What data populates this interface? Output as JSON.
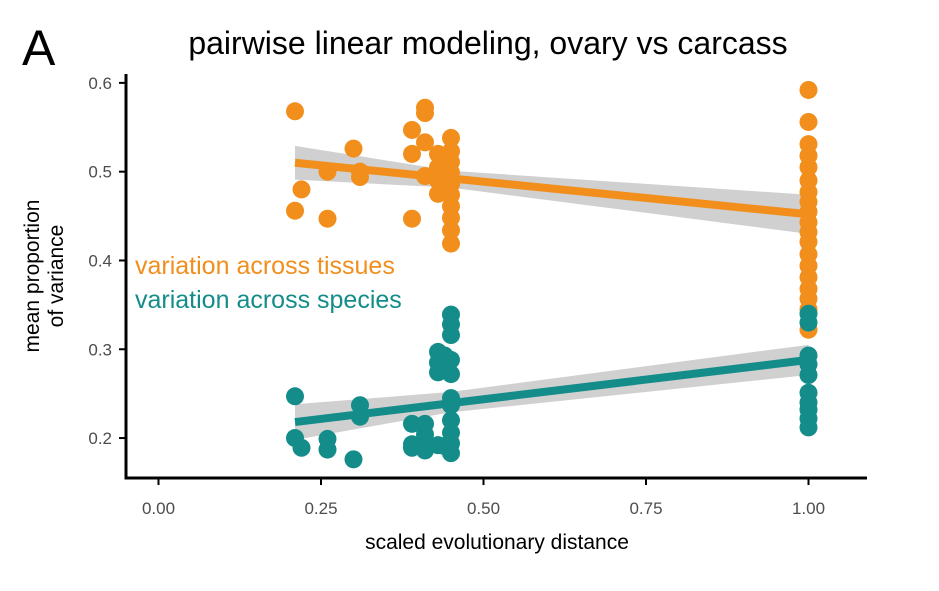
{
  "panel_label": "A",
  "chart_data": {
    "type": "scatter",
    "title": "pairwise linear modeling, ovary vs carcass",
    "xlabel": "scaled evolutionary distance",
    "ylabel": "mean proportion\nof variance",
    "ylabel_lines": [
      "mean proportion",
      "of variance"
    ],
    "xlim": [
      -0.05,
      1.09
    ],
    "ylim": [
      0.155,
      0.61
    ],
    "xticks": [
      0.0,
      0.25,
      0.5,
      0.75,
      1.0
    ],
    "xtick_labels": [
      "0.00",
      "0.25",
      "0.50",
      "0.75",
      "1.00"
    ],
    "yticks": [
      0.2,
      0.3,
      0.4,
      0.5,
      0.6
    ],
    "ytick_labels": [
      "0.2",
      "0.3",
      "0.4",
      "0.5",
      "0.6"
    ],
    "grid": false,
    "legend": "inline text labels at left",
    "series": [
      {
        "name": "variation across tissues",
        "color": "#F28E1C",
        "band_color": "#C8C8C8",
        "points": [
          [
            0.21,
            0.568
          ],
          [
            0.21,
            0.456
          ],
          [
            0.22,
            0.48
          ],
          [
            0.26,
            0.5
          ],
          [
            0.26,
            0.447
          ],
          [
            0.3,
            0.526
          ],
          [
            0.31,
            0.5
          ],
          [
            0.31,
            0.494
          ],
          [
            0.39,
            0.547
          ],
          [
            0.39,
            0.52
          ],
          [
            0.39,
            0.447
          ],
          [
            0.41,
            0.572
          ],
          [
            0.41,
            0.566
          ],
          [
            0.41,
            0.533
          ],
          [
            0.41,
            0.495
          ],
          [
            0.43,
            0.52
          ],
          [
            0.43,
            0.505
          ],
          [
            0.43,
            0.49
          ],
          [
            0.43,
            0.475
          ],
          [
            0.44,
            0.517
          ],
          [
            0.44,
            0.5
          ],
          [
            0.45,
            0.538
          ],
          [
            0.45,
            0.523
          ],
          [
            0.45,
            0.511
          ],
          [
            0.45,
            0.499
          ],
          [
            0.45,
            0.486
          ],
          [
            0.45,
            0.474
          ],
          [
            0.45,
            0.461
          ],
          [
            0.45,
            0.448
          ],
          [
            0.45,
            0.434
          ],
          [
            0.45,
            0.419
          ],
          [
            1.0,
            0.592
          ],
          [
            1.0,
            0.556
          ],
          [
            1.0,
            0.531
          ],
          [
            1.0,
            0.518
          ],
          [
            1.0,
            0.505
          ],
          [
            1.0,
            0.49
          ],
          [
            1.0,
            0.477
          ],
          [
            1.0,
            0.466
          ],
          [
            1.0,
            0.455
          ],
          [
            1.0,
            0.443
          ],
          [
            1.0,
            0.432
          ],
          [
            1.0,
            0.421
          ],
          [
            1.0,
            0.407
          ],
          [
            1.0,
            0.394
          ],
          [
            1.0,
            0.381
          ],
          [
            1.0,
            0.368
          ],
          [
            1.0,
            0.357
          ],
          [
            1.0,
            0.345
          ],
          [
            1.0,
            0.322
          ]
        ],
        "fit": {
          "x": [
            0.21,
            1.0
          ],
          "y": [
            0.51,
            0.452
          ]
        },
        "ci": {
          "x": [
            0.21,
            0.45,
            1.0
          ],
          "lower": [
            0.491,
            0.482,
            0.43
          ],
          "upper": [
            0.529,
            0.501,
            0.474
          ]
        }
      },
      {
        "name": "variation across species",
        "color": "#148D8A",
        "band_color": "#C8C8C8",
        "points": [
          [
            0.21,
            0.247
          ],
          [
            0.21,
            0.2
          ],
          [
            0.22,
            0.189
          ],
          [
            0.26,
            0.199
          ],
          [
            0.26,
            0.187
          ],
          [
            0.3,
            0.176
          ],
          [
            0.31,
            0.237
          ],
          [
            0.31,
            0.224
          ],
          [
            0.39,
            0.216
          ],
          [
            0.39,
            0.193
          ],
          [
            0.39,
            0.189
          ],
          [
            0.41,
            0.216
          ],
          [
            0.41,
            0.204
          ],
          [
            0.41,
            0.191
          ],
          [
            0.41,
            0.186
          ],
          [
            0.43,
            0.297
          ],
          [
            0.43,
            0.285
          ],
          [
            0.43,
            0.274
          ],
          [
            0.43,
            0.192
          ],
          [
            0.44,
            0.293
          ],
          [
            0.44,
            0.287
          ],
          [
            0.44,
            0.191
          ],
          [
            0.45,
            0.339
          ],
          [
            0.45,
            0.328
          ],
          [
            0.45,
            0.316
          ],
          [
            0.45,
            0.288
          ],
          [
            0.45,
            0.272
          ],
          [
            0.45,
            0.245
          ],
          [
            0.45,
            0.237
          ],
          [
            0.45,
            0.22
          ],
          [
            0.45,
            0.206
          ],
          [
            0.45,
            0.194
          ],
          [
            0.45,
            0.183
          ],
          [
            1.0,
            0.34
          ],
          [
            1.0,
            0.33
          ],
          [
            1.0,
            0.293
          ],
          [
            1.0,
            0.283
          ],
          [
            1.0,
            0.271
          ],
          [
            1.0,
            0.251
          ],
          [
            1.0,
            0.24
          ],
          [
            1.0,
            0.232
          ],
          [
            1.0,
            0.222
          ],
          [
            1.0,
            0.212
          ]
        ],
        "fit": {
          "x": [
            0.21,
            1.0
          ],
          "y": [
            0.218,
            0.288
          ]
        },
        "ci": {
          "x": [
            0.21,
            0.45,
            1.0
          ],
          "lower": [
            0.198,
            0.229,
            0.271
          ],
          "upper": [
            0.238,
            0.252,
            0.305
          ]
        }
      }
    ]
  }
}
